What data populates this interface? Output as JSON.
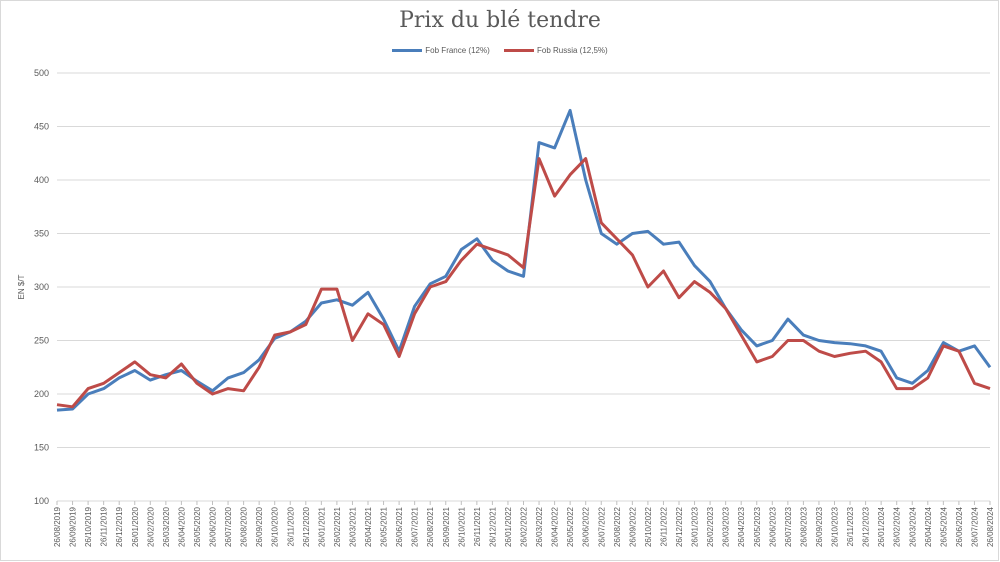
{
  "chart_data": {
    "type": "line",
    "title": "Prix du blé tendre",
    "ylabel": "EN $/T",
    "xlabel": "",
    "ylim": [
      100,
      500
    ],
    "yticks": [
      100,
      150,
      200,
      250,
      300,
      350,
      400,
      450,
      500
    ],
    "grid": true,
    "legend_position": "top",
    "x": [
      "26/08/2019",
      "26/09/2019",
      "26/10/2019",
      "26/11/2019",
      "26/12/2019",
      "26/01/2020",
      "26/02/2020",
      "26/03/2020",
      "26/04/2020",
      "26/05/2020",
      "26/06/2020",
      "26/07/2020",
      "26/08/2020",
      "26/09/2020",
      "26/10/2020",
      "26/11/2020",
      "26/12/2020",
      "26/01/2021",
      "26/02/2021",
      "26/03/2021",
      "26/04/2021",
      "26/05/2021",
      "26/06/2021",
      "26/07/2021",
      "26/08/2021",
      "26/09/2021",
      "26/10/2021",
      "26/11/2021",
      "26/12/2021",
      "26/01/2022",
      "26/02/2022",
      "26/03/2022",
      "26/04/2022",
      "26/05/2022",
      "26/06/2022",
      "26/07/2022",
      "26/08/2022",
      "26/09/2022",
      "26/10/2022",
      "26/11/2022",
      "26/12/2022",
      "26/01/2023",
      "26/02/2023",
      "26/03/2023",
      "26/04/2023",
      "26/05/2023",
      "26/06/2023",
      "26/07/2023",
      "26/08/2023",
      "26/09/2023",
      "26/10/2023",
      "26/11/2023",
      "26/12/2023",
      "26/01/2024",
      "26/02/2024",
      "26/03/2024",
      "26/04/2024",
      "26/05/2024",
      "26/06/2024",
      "26/07/2024",
      "26/08/2024"
    ],
    "series": [
      {
        "name": "Fob France (12%)",
        "color": "#4a7ebb",
        "values": [
          185,
          186,
          200,
          205,
          215,
          222,
          213,
          218,
          222,
          212,
          203,
          215,
          220,
          232,
          252,
          258,
          268,
          285,
          288,
          283,
          295,
          270,
          240,
          282,
          303,
          310,
          335,
          345,
          325,
          315,
          310,
          435,
          430,
          465,
          400,
          350,
          340,
          350,
          352,
          340,
          342,
          320,
          305,
          280,
          260,
          245,
          250,
          270,
          255,
          250,
          248,
          247,
          245,
          240,
          215,
          210,
          222,
          248,
          240,
          245,
          225
        ]
      },
      {
        "name": "Fob Russia (12,5%)",
        "color": "#be4b48",
        "values": [
          190,
          188,
          205,
          210,
          220,
          230,
          218,
          215,
          228,
          210,
          200,
          205,
          203,
          225,
          255,
          258,
          265,
          298,
          298,
          250,
          275,
          265,
          235,
          275,
          300,
          305,
          325,
          340,
          335,
          330,
          318,
          420,
          385,
          405,
          420,
          360,
          345,
          330,
          300,
          315,
          290,
          305,
          295,
          280,
          255,
          230,
          235,
          250,
          250,
          240,
          235,
          238,
          240,
          230,
          205,
          205,
          215,
          245,
          240,
          210,
          205
        ]
      }
    ]
  }
}
